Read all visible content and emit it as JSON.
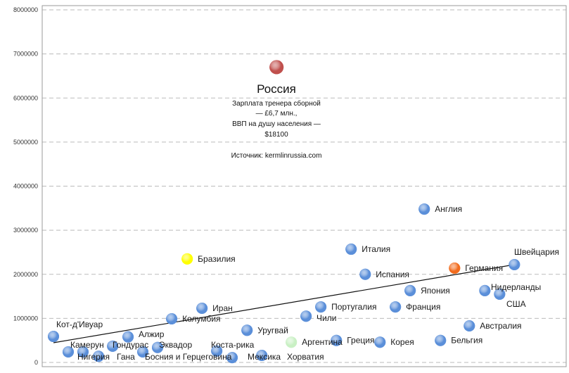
{
  "chart_data": {
    "type": "scatter",
    "title": "",
    "xlabel": "",
    "ylabel": "",
    "xlim": [
      0,
      40200
    ],
    "ylim": [
      0,
      8000000
    ],
    "yticks": [
      "0",
      "1000000",
      "2000000",
      "3000000",
      "4000000",
      "5000000",
      "6000000",
      "7000000",
      "8000000"
    ],
    "grid": "horizontal dashed",
    "default_color": "#5b8fd9",
    "points": [
      {
        "name": "Россия",
        "x": 18100,
        "y": 6700000,
        "color": "#c0504d"
      },
      {
        "name": "Кот-д'Ивуар",
        "x": 870,
        "y": 590000
      },
      {
        "name": "Камерун",
        "x": 2010,
        "y": 240000
      },
      {
        "name": "Нигерия",
        "x": 3150,
        "y": 240000
      },
      {
        "name": "Гана",
        "x": 4350,
        "y": 140000
      },
      {
        "name": "Гондурас",
        "x": 5440,
        "y": 370000
      },
      {
        "name": "Алжир",
        "x": 6630,
        "y": 580000
      },
      {
        "name": "Босния и Герцеговина",
        "x": 7770,
        "y": 240000
      },
      {
        "name": "Эквадор",
        "x": 8910,
        "y": 340000
      },
      {
        "name": "Колумбия",
        "x": 10000,
        "y": 990000
      },
      {
        "name": "Бразилия",
        "x": 11200,
        "y": 2350000,
        "color": "#ffff00"
      },
      {
        "name": "Иран",
        "x": 12340,
        "y": 1230000
      },
      {
        "name": "Коста-рика",
        "x": 13480,
        "y": 260000
      },
      {
        "name": "Мексика",
        "x": 14670,
        "y": 110000
      },
      {
        "name": "Уругвай",
        "x": 15820,
        "y": 730000
      },
      {
        "name": "Хорватия",
        "x": 16960,
        "y": 160000
      },
      {
        "name": "Аргентина",
        "x": 19240,
        "y": 460000,
        "color": "#c9f0c4"
      },
      {
        "name": "Чили",
        "x": 20380,
        "y": 1050000
      },
      {
        "name": "Португалия",
        "x": 21520,
        "y": 1260000
      },
      {
        "name": "Греция",
        "x": 22720,
        "y": 500000
      },
      {
        "name": "Италия",
        "x": 23860,
        "y": 2570000
      },
      {
        "name": "Испания",
        "x": 24950,
        "y": 2000000
      },
      {
        "name": "Корея",
        "x": 26090,
        "y": 460000
      },
      {
        "name": "Франция",
        "x": 27280,
        "y": 1260000
      },
      {
        "name": "Япония",
        "x": 28420,
        "y": 1630000
      },
      {
        "name": "Англия",
        "x": 29510,
        "y": 3480000
      },
      {
        "name": "Бельгия",
        "x": 30760,
        "y": 500000
      },
      {
        "name": "Германия",
        "x": 31850,
        "y": 2140000,
        "color": "#f26b1d"
      },
      {
        "name": "Австралия",
        "x": 32990,
        "y": 830000
      },
      {
        "name": "Нидерланды",
        "x": 34190,
        "y": 1630000
      },
      {
        "name": "США",
        "x": 35330,
        "y": 1550000
      },
      {
        "name": "Швейцария",
        "x": 36470,
        "y": 2220000
      }
    ],
    "trendline": {
      "type": "linear",
      "from": {
        "x": 870,
        "y": 447000
      },
      "to": {
        "x": 36470,
        "y": 2220000
      }
    },
    "annotation": {
      "title": "Россия",
      "lines": [
        "Зарплата тренера сборной",
        "— £6,7 млн.,",
        "ВВП на душу населения —",
        "$18100"
      ],
      "source": "Источник: kermlinrussia.com"
    }
  }
}
